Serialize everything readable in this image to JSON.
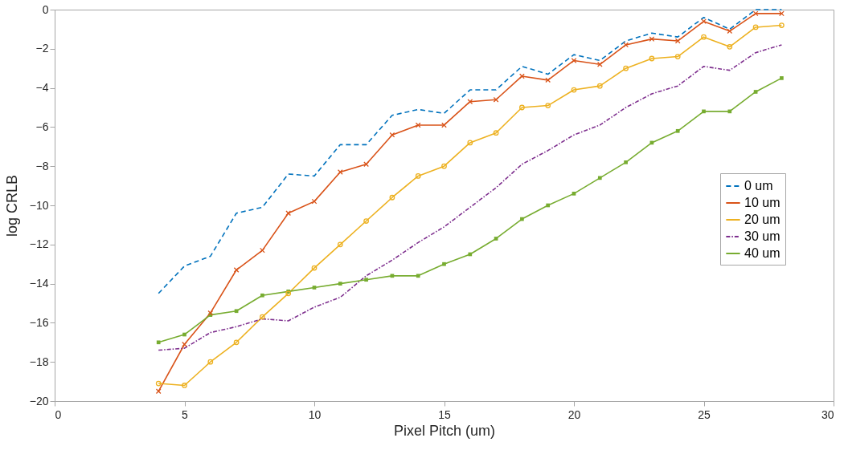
{
  "chart_data": {
    "type": "line",
    "xlabel": "Pixel Pitch (um)",
    "ylabel": "log CRLB",
    "x": [
      4,
      5,
      6,
      7,
      8,
      9,
      10,
      11,
      12,
      13,
      14,
      15,
      16,
      17,
      18,
      19,
      20,
      21,
      22,
      23,
      24,
      25,
      26,
      27,
      28
    ],
    "xlim": [
      0,
      30
    ],
    "xticks": [
      0,
      5,
      10,
      15,
      20,
      25,
      30
    ],
    "ylim": [
      -20,
      0
    ],
    "yticks": [
      -20,
      -18,
      -16,
      -14,
      -12,
      -10,
      -8,
      -6,
      -4,
      -2,
      0
    ],
    "grid": false,
    "legend": "right",
    "series": [
      {
        "name": "0 um",
        "color": "#0072bd",
        "line_style": "dashed",
        "marker": "none",
        "values": [
          -14.5,
          -13.1,
          -12.6,
          -10.4,
          -10.1,
          -8.4,
          -8.5,
          -6.9,
          -6.9,
          -5.4,
          -5.1,
          -5.3,
          -4.1,
          -4.1,
          -2.9,
          -3.3,
          -2.3,
          -2.6,
          -1.6,
          -1.2,
          -1.4,
          -0.4,
          -1.0,
          0,
          0
        ]
      },
      {
        "name": "10 um",
        "color": "#d95319",
        "line_style": "solid",
        "marker": "cross",
        "values": [
          -19.5,
          -17.1,
          -15.5,
          -13.3,
          -12.3,
          -10.4,
          -9.8,
          -8.3,
          -7.9,
          -6.4,
          -5.9,
          -5.9,
          -4.7,
          -4.6,
          -3.4,
          -3.6,
          -2.6,
          -2.8,
          -1.8,
          -1.5,
          -1.6,
          -0.6,
          -1.1,
          -0.2,
          -0.2
        ]
      },
      {
        "name": "20 um",
        "color": "#edb120",
        "line_style": "solid",
        "marker": "circle",
        "values": [
          -19.1,
          -19.2,
          -18.0,
          -17.0,
          -15.7,
          -14.5,
          -13.2,
          -12.0,
          -10.8,
          -9.6,
          -8.5,
          -8.0,
          -6.8,
          -6.3,
          -5.0,
          -4.9,
          -4.1,
          -3.9,
          -3.0,
          -2.5,
          -2.4,
          -1.4,
          -1.9,
          -0.9,
          -0.8
        ]
      },
      {
        "name": "30 um",
        "color": "#7e2f8e",
        "line_style": "dashdot",
        "marker": "none",
        "values": [
          -17.4,
          -17.3,
          -16.5,
          -16.2,
          -15.8,
          -15.9,
          -15.2,
          -14.7,
          -13.6,
          -12.8,
          -11.9,
          -11.1,
          -10.1,
          -9.1,
          -7.9,
          -7.2,
          -6.4,
          -5.9,
          -5.0,
          -4.3,
          -3.9,
          -2.9,
          -3.1,
          -2.2,
          -1.8
        ]
      },
      {
        "name": "40 um",
        "color": "#77ac30",
        "line_style": "solid",
        "marker": "square",
        "values": [
          -17.0,
          -16.6,
          -15.6,
          -15.4,
          -14.6,
          -14.4,
          -14.2,
          -14.0,
          -13.8,
          -13.6,
          -13.6,
          -13.0,
          -12.5,
          -11.7,
          -10.7,
          -10.0,
          -9.4,
          -8.6,
          -7.8,
          -6.8,
          -6.2,
          -5.2,
          -5.2,
          -4.2,
          -3.5
        ]
      }
    ]
  }
}
